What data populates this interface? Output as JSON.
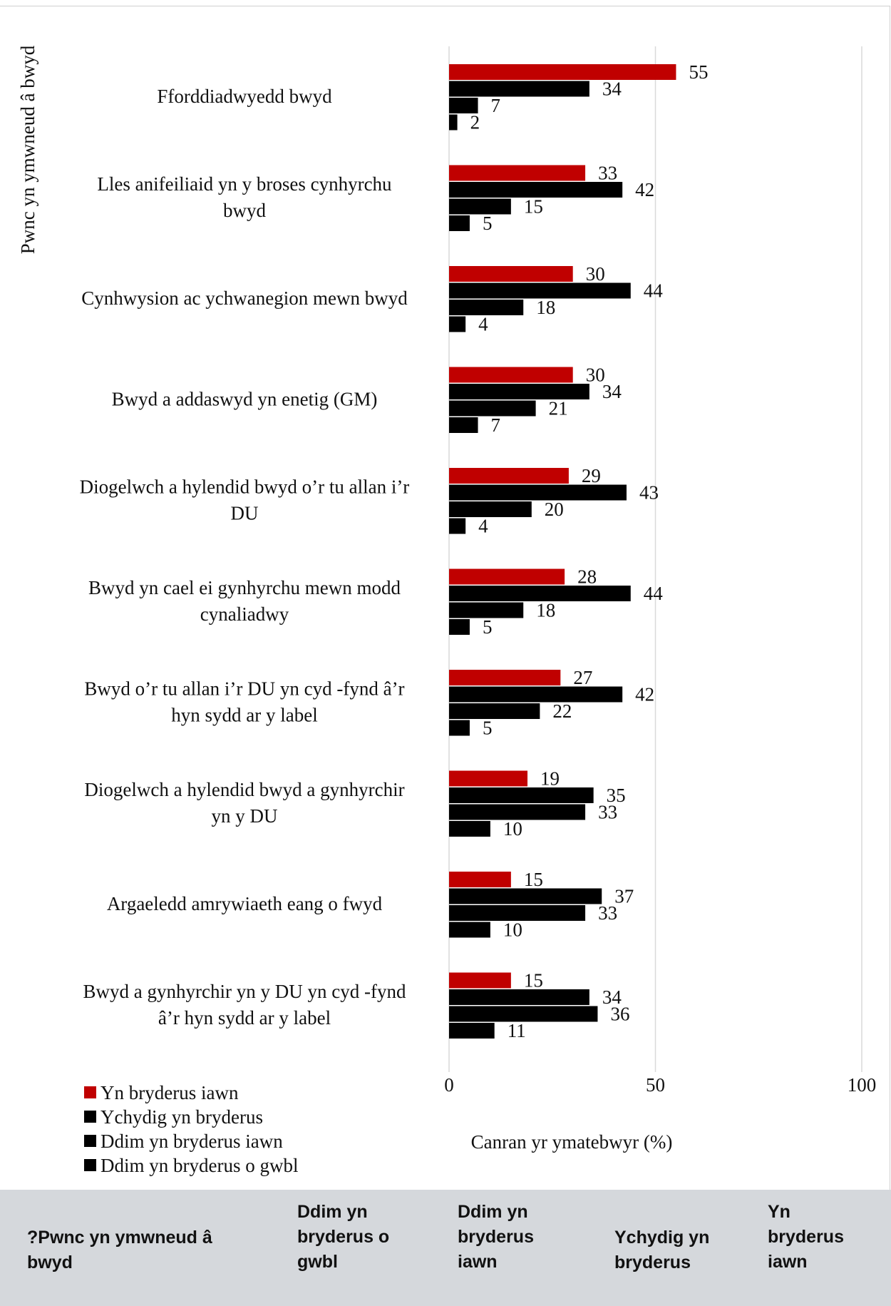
{
  "chart_data": {
    "type": "bar",
    "orientation": "horizontal",
    "ylabel": "Pwnc yn ymwneud â bwyd",
    "xlabel": "Canran yr ymatebwyr (%)",
    "xlim": [
      0,
      100
    ],
    "xticks": [
      0,
      50,
      100
    ],
    "grid": true,
    "legend_position": "bottom-left",
    "categories": [
      [
        "Fforddiadwyedd bwyd"
      ],
      [
        "Lles anifeiliaid yn y broses cynhyrchu",
        "bwyd"
      ],
      [
        "Cynhwysion ac ychwanegion mewn bwyd"
      ],
      [
        "Bwyd a addaswyd yn enetig (GM)"
      ],
      [
        "Diogelwch a hylendid bwyd o’r tu allan i’r",
        "DU"
      ],
      [
        "Bwyd yn cael ei gynhyrchu mewn modd",
        "cynaliadwy"
      ],
      [
        "Bwyd o’r tu allan i’r DU yn cyd   -fynd â’r",
        "hyn sydd ar y label"
      ],
      [
        "Diogelwch a hylendid bwyd a gynhyrchir",
        "yn y DU"
      ],
      [
        "Argaeledd amrywiaeth eang o fwyd"
      ],
      [
        "Bwyd a gynhyrchir yn y DU yn cyd   -fynd",
        "â’r hyn sydd ar y label"
      ]
    ],
    "series": [
      {
        "name": "Yn bryderus iawn",
        "color": "#c00000",
        "values": [
          55,
          33,
          30,
          30,
          29,
          28,
          27,
          19,
          15,
          15
        ]
      },
      {
        "name": "Ychydig yn bryderus",
        "color": "#000000",
        "values": [
          34,
          42,
          44,
          34,
          43,
          44,
          42,
          35,
          37,
          34
        ]
      },
      {
        "name": "Ddim yn bryderus iawn",
        "color": "#000000",
        "values": [
          7,
          15,
          18,
          21,
          20,
          18,
          22,
          33,
          33,
          36
        ]
      },
      {
        "name": "Ddim yn bryderus o gwbl",
        "color": "#000000",
        "values": [
          2,
          5,
          4,
          7,
          4,
          5,
          5,
          10,
          10,
          11
        ]
      }
    ]
  },
  "table_header": {
    "col1": [
      "?Pwnc yn ymwneud â",
      "bwyd"
    ],
    "col2": [
      "Ddim yn",
      "bryderus o",
      "gwbl"
    ],
    "col3": [
      "Ddim yn",
      "bryderus",
      "iawn"
    ],
    "col4": [
      "Ychydig yn",
      "bryderus"
    ],
    "col5": [
      "Yn",
      "bryderus",
      "iawn"
    ]
  }
}
